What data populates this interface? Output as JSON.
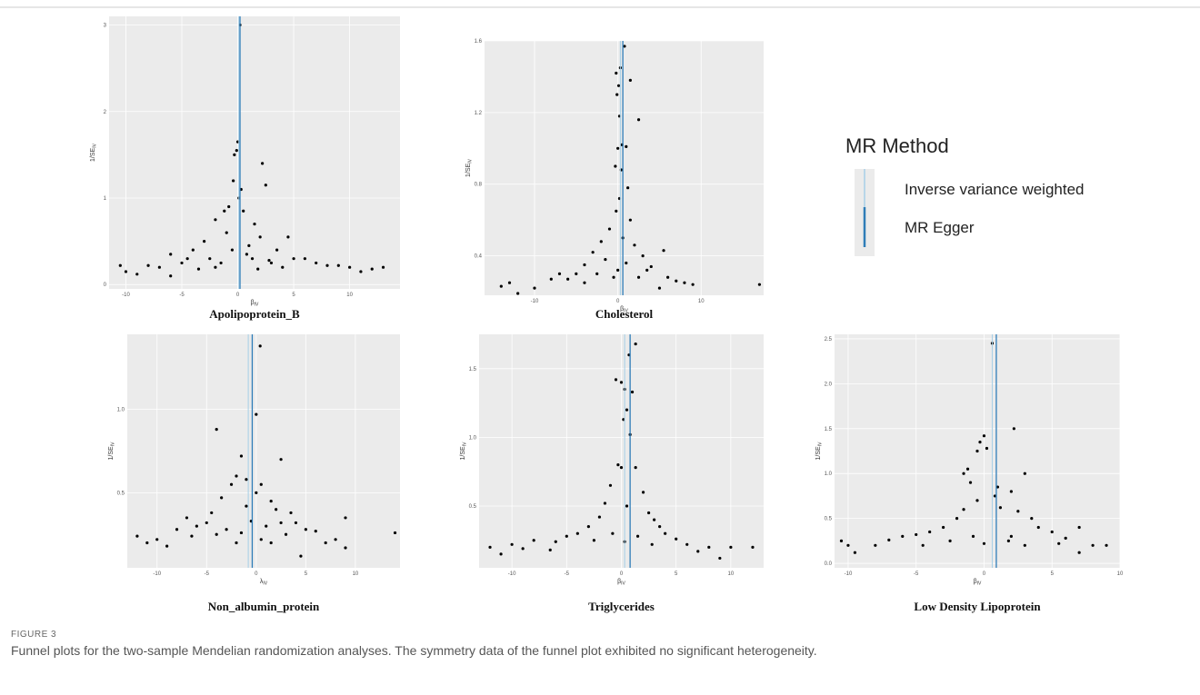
{
  "legend": {
    "title": "MR Method",
    "entries": [
      {
        "name": "Inverse variance weighted",
        "color": "#a6cfe6"
      },
      {
        "name": "MR Egger",
        "color": "#2f7db8"
      }
    ]
  },
  "caption": {
    "label": "FIGURE 3",
    "text": "Funnel plots for the two-sample Mendelian randomization analyses. The symmetry data of the funnel plot exhibited no significant heterogeneity."
  },
  "chart_data": [
    {
      "type": "scatter",
      "title": "Apolipoprotein_B",
      "xlabel": {
        "text": "β",
        "sub": "IV"
      },
      "ylabel": {
        "text": "1/SE",
        "sub": "IV"
      },
      "xlim": [
        -11.5,
        14.5
      ],
      "ylim": [
        -0.05,
        3.1
      ],
      "xticks": [
        -10,
        -5,
        0,
        5,
        10
      ],
      "yticks": [
        0,
        1,
        2,
        3
      ],
      "lines": [
        0.1,
        0.2
      ],
      "x": [
        0.2,
        0,
        -0.1,
        -0.3,
        2.2,
        -0.4,
        0.3,
        2.5,
        0.1,
        -0.8,
        -1.2,
        0.5,
        -2,
        1.5,
        -1,
        2,
        4.5,
        -3,
        1,
        -4,
        3.5,
        -6,
        6,
        -2.5,
        2.8,
        -5,
        -8,
        8,
        10,
        -10.5,
        -10,
        -9,
        12,
        13,
        -7,
        7,
        -1.5,
        1.3,
        -3.5,
        4,
        0.8,
        -0.5,
        5,
        -6,
        9,
        11,
        -4.5,
        3,
        -2,
        1.8
      ],
      "y": [
        3.0,
        1.65,
        1.55,
        1.5,
        1.4,
        1.2,
        1.1,
        1.15,
        1.0,
        0.9,
        0.85,
        0.85,
        0.75,
        0.7,
        0.6,
        0.55,
        0.55,
        0.5,
        0.45,
        0.4,
        0.4,
        0.35,
        0.3,
        0.3,
        0.28,
        0.25,
        0.22,
        0.22,
        0.2,
        0.22,
        0.15,
        0.12,
        0.18,
        0.2,
        0.2,
        0.25,
        0.25,
        0.3,
        0.18,
        0.2,
        0.35,
        0.4,
        0.3,
        0.1,
        0.22,
        0.15,
        0.3,
        0.25,
        0.2,
        0.18
      ]
    },
    {
      "type": "scatter",
      "title": "Cholesterol",
      "xlabel": {
        "text": "β",
        "sub": "IV"
      },
      "ylabel": {
        "text": "1/SE",
        "sub": "IV"
      },
      "xlim": [
        -16,
        17.5
      ],
      "ylim": [
        0.18,
        1.6
      ],
      "xticks": [
        -10,
        0,
        10
      ],
      "yticks": [
        0.4,
        0.8,
        1.2,
        1.6
      ],
      "lines": [
        0.3,
        0.6
      ],
      "x": [
        0.8,
        0.3,
        -0.2,
        0.1,
        -0.1,
        1.5,
        0.2,
        2.5,
        0,
        0.5,
        1,
        -0.3,
        0.4,
        1.2,
        0.2,
        -0.2,
        1.5,
        -1,
        0.6,
        -2,
        2,
        -3,
        3,
        -1.5,
        1,
        -4,
        4,
        5.5,
        -5,
        6,
        -6,
        7,
        -8,
        8,
        9,
        -10,
        -14,
        -13,
        -12,
        17,
        -2.5,
        2.5,
        0,
        -0.5,
        3.5,
        -7,
        5,
        -4
      ],
      "y": [
        1.57,
        1.45,
        1.42,
        1.35,
        1.3,
        1.38,
        1.18,
        1.16,
        1.0,
        1.02,
        1.01,
        0.9,
        0.88,
        0.78,
        0.72,
        0.65,
        0.6,
        0.55,
        0.5,
        0.48,
        0.46,
        0.42,
        0.4,
        0.38,
        0.36,
        0.35,
        0.34,
        0.43,
        0.3,
        0.28,
        0.27,
        0.26,
        0.27,
        0.25,
        0.24,
        0.22,
        0.23,
        0.25,
        0.19,
        0.24,
        0.3,
        0.28,
        0.32,
        0.28,
        0.32,
        0.3,
        0.22,
        0.25
      ]
    },
    {
      "type": "scatter",
      "title": "Non_albumin_protein",
      "xlabel": {
        "text": "λ",
        "sub": "IV"
      },
      "ylabel": {
        "text": "1/SE",
        "sub": "IV"
      },
      "xlim": [
        -13,
        14.5
      ],
      "ylim": [
        0.05,
        1.45
      ],
      "xticks": [
        -10,
        -5,
        0,
        5,
        10
      ],
      "yticks": [
        0.5,
        {
          "value": 1,
          "label": "1.0"
        }
      ],
      "lines": [
        -0.8,
        -0.4
      ],
      "x": [
        0.4,
        0,
        -4,
        -1.5,
        2.5,
        -2,
        -1,
        0.5,
        -2.5,
        0,
        -3.5,
        1.5,
        -1,
        2,
        -4.5,
        3.5,
        -5,
        4,
        -7,
        9,
        -6,
        5,
        -8,
        6,
        -10,
        -12,
        -11,
        14,
        8,
        9,
        -3,
        3,
        -1.5,
        1,
        0.5,
        -0.5,
        2.5,
        -2,
        7,
        -9,
        4.5,
        -4,
        1.5,
        -6.5
      ],
      "y": [
        1.38,
        0.97,
        0.88,
        0.72,
        0.7,
        0.6,
        0.58,
        0.55,
        0.55,
        0.5,
        0.47,
        0.45,
        0.42,
        0.4,
        0.38,
        0.38,
        0.32,
        0.32,
        0.35,
        0.35,
        0.3,
        0.28,
        0.28,
        0.27,
        0.22,
        0.24,
        0.2,
        0.26,
        0.22,
        0.17,
        0.28,
        0.25,
        0.26,
        0.3,
        0.22,
        0.33,
        0.32,
        0.2,
        0.2,
        0.18,
        0.12,
        0.25,
        0.2,
        0.24
      ]
    },
    {
      "type": "scatter",
      "title": "Triglycerides",
      "xlabel": {
        "text": "β",
        "sub": "IV"
      },
      "ylabel": {
        "text": "1/SE",
        "sub": "IV"
      },
      "xlim": [
        -13,
        13
      ],
      "ylim": [
        0.05,
        1.75
      ],
      "xticks": [
        -10,
        -5,
        0,
        5,
        10
      ],
      "yticks": [
        0.5,
        {
          "value": 1,
          "label": "1.0"
        },
        1.5
      ],
      "lines": [
        0.3,
        0.8
      ],
      "x": [
        1.3,
        0.7,
        -0.5,
        0,
        0.3,
        1,
        0.5,
        0.2,
        0.8,
        -0.3,
        0,
        1.3,
        -1,
        2,
        -1.5,
        0.5,
        -2,
        2.5,
        3,
        -3,
        3.5,
        -4,
        4,
        -5,
        5,
        -6,
        6,
        -8,
        8,
        -10,
        10,
        -12,
        -11,
        9,
        12,
        -2.5,
        1.5,
        -0.8,
        0.3,
        2.8,
        -6.5,
        7,
        -9
      ],
      "y": [
        1.68,
        1.6,
        1.42,
        1.4,
        1.35,
        1.33,
        1.2,
        1.13,
        1.02,
        0.8,
        0.78,
        0.78,
        0.65,
        0.6,
        0.52,
        0.5,
        0.42,
        0.45,
        0.4,
        0.35,
        0.35,
        0.3,
        0.3,
        0.28,
        0.26,
        0.24,
        0.22,
        0.25,
        0.2,
        0.22,
        0.2,
        0.2,
        0.15,
        0.12,
        0.2,
        0.25,
        0.28,
        0.3,
        0.24,
        0.22,
        0.18,
        0.17,
        0.19
      ]
    },
    {
      "type": "scatter",
      "title": "Low Density Lipoprotein",
      "xlabel": {
        "text": "β",
        "sub": "IV"
      },
      "ylabel": {
        "text": "1/SE",
        "sub": "IV"
      },
      "xlim": [
        -11,
        10
      ],
      "ylim": [
        -0.05,
        2.55
      ],
      "xticks": [
        -10,
        -5,
        0,
        5,
        10
      ],
      "yticks": [
        {
          "value": 0,
          "label": "0.0"
        },
        0.5,
        {
          "value": 1,
          "label": "1.0"
        },
        1.5,
        {
          "value": 2,
          "label": "2.0"
        },
        2.5
      ],
      "lines": [
        0.6,
        0.9
      ],
      "x": [
        0.6,
        0,
        -0.3,
        0.2,
        -0.5,
        2.2,
        -1.5,
        -1.2,
        3,
        -1,
        1,
        2,
        0.8,
        -0.5,
        1.2,
        -1.5,
        2.5,
        -2,
        3.5,
        -3,
        4,
        -4,
        5,
        -5,
        -6,
        6,
        -7,
        7,
        -8,
        8,
        9,
        -10,
        -10.5,
        -9.5,
        7,
        -2.5,
        1.8,
        0,
        -0.8,
        3,
        -4.5,
        5.5,
        2
      ],
      "y": [
        2.45,
        1.42,
        1.35,
        1.28,
        1.25,
        1.5,
        1.0,
        1.05,
        1.0,
        0.9,
        0.85,
        0.8,
        0.75,
        0.7,
        0.62,
        0.6,
        0.58,
        0.5,
        0.5,
        0.4,
        0.4,
        0.35,
        0.35,
        0.32,
        0.3,
        0.28,
        0.26,
        0.4,
        0.2,
        0.2,
        0.2,
        0.2,
        0.25,
        0.12,
        0.12,
        0.25,
        0.25,
        0.22,
        0.3,
        0.2,
        0.2,
        0.22,
        0.3
      ]
    }
  ]
}
